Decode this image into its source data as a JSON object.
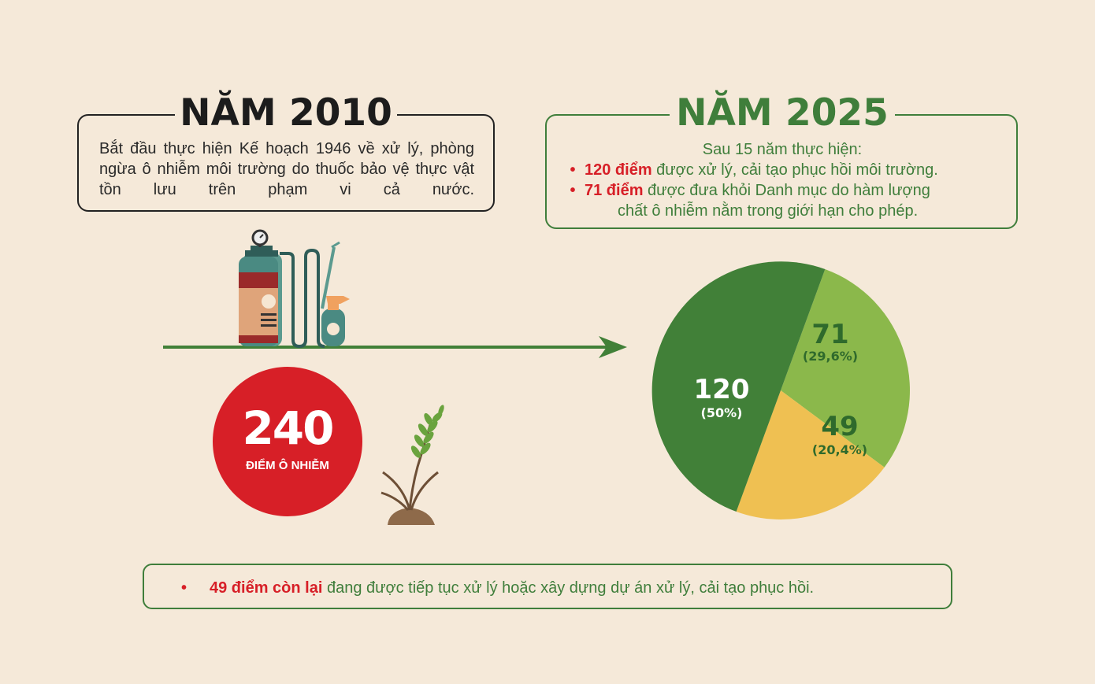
{
  "colors": {
    "background": "#f5e9d9",
    "green_dark": "#418038",
    "green_light": "#8bb84b",
    "yellow": "#efc052",
    "red": "#d71f27",
    "brown": "#8e6a4a"
  },
  "left": {
    "title": "NĂM 2010",
    "description": "Bắt đầu thực hiện Kế hoạch 1946 về xử lý, phòng ngừa ô nhiễm môi trường do thuốc bảo vệ thực vật tồn lưu trên phạm vi cả nước.",
    "circle_value": "240",
    "circle_label": "ĐIỂM Ô NHIỄM"
  },
  "right": {
    "title": "NĂM 2025",
    "intro": "Sau 15 năm thực hiện:",
    "bullets": [
      {
        "highlight": "120 điểm",
        "text": " được xử lý, cải tạo phục hồi môi trường."
      },
      {
        "highlight": "71 điểm",
        "text": " được đưa khỏi Danh mục do hàm lượng",
        "continuation": "chất ô nhiễm nằm trong giới hạn cho phép."
      }
    ]
  },
  "bottom": {
    "highlight": "49 điểm còn lại",
    "text": " đang được tiếp tục xử lý hoặc xây dựng dự án xử lý, cải tạo phục hồi."
  },
  "icons": [
    "pesticide-sprayer-icon",
    "spray-bottle-icon",
    "plant-sprout-icon",
    "arrow-right-icon"
  ],
  "chart_data": {
    "type": "pie",
    "title": "",
    "total": 240,
    "slices": [
      {
        "name": "71",
        "value": 71,
        "label": "71",
        "percent_label": "(29,6%)",
        "color": "#8bb84b"
      },
      {
        "name": "49",
        "value": 49,
        "label": "49",
        "percent_label": "(20,4%)",
        "color": "#efc052"
      },
      {
        "name": "120",
        "value": 120,
        "label": "120",
        "percent_label": "(50%)",
        "color": "#418038"
      }
    ]
  }
}
